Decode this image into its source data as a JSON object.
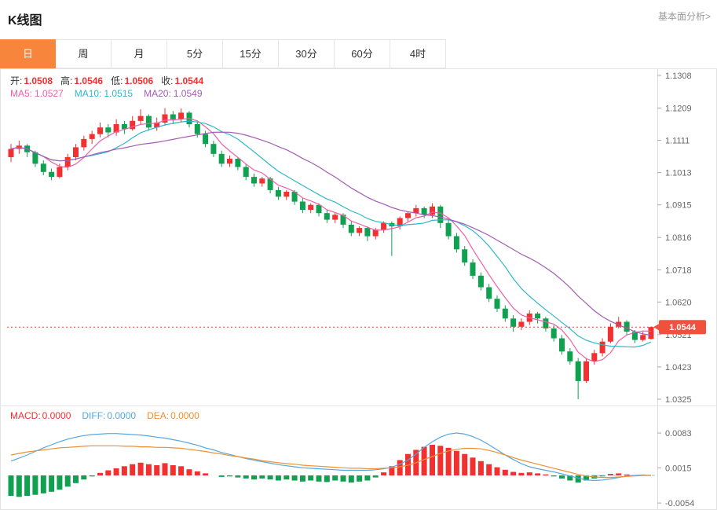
{
  "header": {
    "title": "K线图",
    "link": "基本面分析>"
  },
  "tabs": [
    {
      "id": "day",
      "label": "日",
      "active": true
    },
    {
      "id": "week",
      "label": "周",
      "active": false
    },
    {
      "id": "month",
      "label": "月",
      "active": false
    },
    {
      "id": "5min",
      "label": "5分",
      "active": false
    },
    {
      "id": "15min",
      "label": "15分",
      "active": false
    },
    {
      "id": "30min",
      "label": "30分",
      "active": false
    },
    {
      "id": "60min",
      "label": "60分",
      "active": false
    },
    {
      "id": "4hour",
      "label": "4时",
      "active": false
    }
  ],
  "ohlc": {
    "open_label": "开:",
    "open": "1.0508",
    "high_label": "高:",
    "high": "1.0546",
    "low_label": "低:",
    "low": "1.0506",
    "close_label": "收:",
    "close": "1.0544"
  },
  "ma_legend": {
    "ma5_label": "MA5:",
    "ma5": "1.0527",
    "ma10_label": "MA10:",
    "ma10": "1.0515",
    "ma20_label": "MA20:",
    "ma20": "1.0549"
  },
  "macd_legend": {
    "macd_label": "MACD:",
    "macd": "0.0000",
    "diff_label": "DIFF:",
    "diff": "0.0000",
    "dea_label": "DEA:",
    "dea": "0.0000"
  },
  "price_marker": "1.0544",
  "colors": {
    "up": "#f23030",
    "down": "#0fa050",
    "ma5": "#ef5fa7",
    "ma10": "#2fb6cc",
    "ma20": "#a55bb4",
    "diff": "#54a8e0",
    "dea": "#ee8f34",
    "tab_active": "#f7853c",
    "badge": "#f0503c",
    "dotted": "#e3402e",
    "zero_dash": "#7ad0e2"
  },
  "chart_data": {
    "type": "candlestick",
    "title": "K线图",
    "main": {
      "ylim": [
        1.0325,
        1.1308
      ],
      "y_ticks": [
        "1.1308",
        "1.1209",
        "1.1111",
        "1.1013",
        "1.0915",
        "1.0816",
        "1.0718",
        "1.0620",
        "1.0521",
        "1.0423",
        "1.0325"
      ],
      "current_price": 1.0544,
      "ma_periods": [
        5,
        10,
        20
      ],
      "ma_shown": {
        "ma5": 1.0527,
        "ma10": 1.0515,
        "ma20": 1.0549
      },
      "candles": [
        [
          1.106,
          1.11,
          1.1045,
          1.1085
        ],
        [
          1.1085,
          1.111,
          1.107,
          1.1095
        ],
        [
          1.1095,
          1.11,
          1.106,
          1.1075
        ],
        [
          1.1075,
          1.108,
          1.103,
          1.104
        ],
        [
          1.104,
          1.105,
          1.1005,
          1.1015
        ],
        [
          1.1015,
          1.1025,
          1.099,
          1.1
        ],
        [
          1.1,
          1.104,
          1.0995,
          1.103
        ],
        [
          1.103,
          1.107,
          1.102,
          1.106
        ],
        [
          1.106,
          1.11,
          1.105,
          1.109
        ],
        [
          1.109,
          1.1125,
          1.108,
          1.1115
        ],
        [
          1.1115,
          1.114,
          1.11,
          1.113
        ],
        [
          1.113,
          1.1165,
          1.112,
          1.115
        ],
        [
          1.115,
          1.116,
          1.112,
          1.1135
        ],
        [
          1.1135,
          1.1175,
          1.1125,
          1.116
        ],
        [
          1.116,
          1.117,
          1.113,
          1.1145
        ],
        [
          1.1145,
          1.1185,
          1.114,
          1.117
        ],
        [
          1.117,
          1.1205,
          1.116,
          1.1185
        ],
        [
          1.1185,
          1.119,
          1.114,
          1.115
        ],
        [
          1.115,
          1.118,
          1.114,
          1.1165
        ],
        [
          1.1165,
          1.1209,
          1.1155,
          1.119
        ],
        [
          1.119,
          1.12,
          1.116,
          1.1175
        ],
        [
          1.1175,
          1.1208,
          1.1165,
          1.1195
        ],
        [
          1.1195,
          1.12,
          1.115,
          1.116
        ],
        [
          1.116,
          1.117,
          1.112,
          1.113
        ],
        [
          1.113,
          1.114,
          1.109,
          1.11
        ],
        [
          1.11,
          1.111,
          1.106,
          1.107
        ],
        [
          1.107,
          1.108,
          1.103,
          1.104
        ],
        [
          1.104,
          1.1065,
          1.103,
          1.1055
        ],
        [
          1.1055,
          1.106,
          1.102,
          1.103
        ],
        [
          1.103,
          1.104,
          1.099,
          1.1
        ],
        [
          1.1,
          1.101,
          1.097,
          1.098
        ],
        [
          1.098,
          1.1,
          1.097,
          1.0995
        ],
        [
          1.0995,
          1.1,
          1.095,
          1.096
        ],
        [
          1.096,
          1.097,
          1.093,
          1.094
        ],
        [
          1.094,
          1.096,
          1.093,
          1.0955
        ],
        [
          1.0955,
          1.096,
          1.0915,
          1.0925
        ],
        [
          1.0925,
          1.0935,
          1.089,
          1.09
        ],
        [
          1.09,
          1.092,
          1.089,
          1.0915
        ],
        [
          1.0915,
          1.092,
          1.088,
          1.089
        ],
        [
          1.089,
          1.09,
          1.086,
          1.087
        ],
        [
          1.087,
          1.089,
          1.086,
          1.0885
        ],
        [
          1.0885,
          1.089,
          1.0845,
          1.0855
        ],
        [
          1.0855,
          1.0865,
          1.082,
          1.083
        ],
        [
          1.083,
          1.085,
          1.082,
          1.0845
        ],
        [
          1.0845,
          1.085,
          1.0805,
          1.082
        ],
        [
          1.082,
          1.0845,
          1.081,
          1.084
        ],
        [
          1.084,
          1.0865,
          1.083,
          1.086
        ],
        [
          1.086,
          1.0865,
          1.076,
          1.085
        ],
        [
          1.085,
          1.088,
          1.084,
          1.0875
        ],
        [
          1.0875,
          1.0895,
          1.0865,
          1.089
        ],
        [
          1.089,
          1.0915,
          1.088,
          1.0905
        ],
        [
          1.0905,
          1.091,
          1.0875,
          1.0885
        ],
        [
          1.0885,
          1.092,
          1.0875,
          1.091
        ],
        [
          1.091,
          1.0915,
          1.0845,
          1.086
        ],
        [
          1.086,
          1.087,
          1.081,
          1.082
        ],
        [
          1.082,
          1.083,
          1.077,
          1.078
        ],
        [
          1.078,
          1.079,
          1.073,
          1.074
        ],
        [
          1.074,
          1.075,
          1.069,
          1.07
        ],
        [
          1.07,
          1.071,
          1.0655,
          1.0665
        ],
        [
          1.0665,
          1.0675,
          1.062,
          1.063
        ],
        [
          1.063,
          1.064,
          1.059,
          1.06
        ],
        [
          1.06,
          1.061,
          1.056,
          1.057
        ],
        [
          1.057,
          1.058,
          1.053,
          1.0545
        ],
        [
          1.0545,
          1.057,
          1.0535,
          1.056
        ],
        [
          1.056,
          1.0595,
          1.055,
          1.0585
        ],
        [
          1.0585,
          1.059,
          1.0555,
          1.057
        ],
        [
          1.057,
          1.0575,
          1.053,
          1.054
        ],
        [
          1.054,
          1.055,
          1.05,
          1.051
        ],
        [
          1.051,
          1.052,
          1.046,
          1.047
        ],
        [
          1.047,
          1.048,
          1.043,
          1.044
        ],
        [
          1.044,
          1.045,
          1.0325,
          1.038
        ],
        [
          1.038,
          1.045,
          1.0375,
          1.044
        ],
        [
          1.044,
          1.0475,
          1.043,
          1.0465
        ],
        [
          1.0465,
          1.051,
          1.0455,
          1.05
        ],
        [
          1.05,
          1.0555,
          1.0495,
          1.0545
        ],
        [
          1.0545,
          1.0575,
          1.054,
          1.056
        ],
        [
          1.056,
          1.0565,
          1.052,
          1.053
        ],
        [
          1.053,
          1.0535,
          1.0495,
          1.0505
        ],
        [
          1.0505,
          1.053,
          1.05,
          1.052
        ],
        [
          1.0508,
          1.0546,
          1.0506,
          1.0544
        ]
      ]
    },
    "macd": {
      "y_ticks": [
        "0.0083",
        "0.0015",
        "-0.0054"
      ],
      "shown": {
        "macd": 0.0,
        "diff": 0.0,
        "dea": 0.0
      },
      "hist": [
        -0.004,
        -0.0042,
        -0.004,
        -0.0038,
        -0.0035,
        -0.0032,
        -0.0028,
        -0.0022,
        -0.0015,
        -0.0008,
        -0.0002,
        0.0005,
        0.001,
        0.0014,
        0.0018,
        0.0022,
        0.0025,
        0.0022,
        0.002,
        0.0024,
        0.002,
        0.0018,
        0.0012,
        0.0008,
        0.0004,
        0.0,
        -0.0003,
        -0.0002,
        -0.0004,
        -0.0006,
        -0.0008,
        -0.0006,
        -0.0008,
        -0.001,
        -0.0008,
        -0.001,
        -0.0012,
        -0.001,
        -0.0012,
        -0.0013,
        -0.001,
        -0.0012,
        -0.0014,
        -0.0012,
        -0.001,
        -0.0004,
        0.0006,
        0.0018,
        0.003,
        0.0042,
        0.005,
        0.0056,
        0.006,
        0.0058,
        0.0054,
        0.0048,
        0.0042,
        0.0035,
        0.0028,
        0.0022,
        0.0016,
        0.0011,
        0.0007,
        0.0005,
        0.0006,
        0.0004,
        0.0002,
        -0.0002,
        -0.0006,
        -0.001,
        -0.0014,
        -0.001,
        -0.0006,
        -0.0002,
        0.0003,
        0.0004,
        0.0002,
        0.0,
        0.0001,
        0.0
      ],
      "diff": [
        0.0028,
        0.0034,
        0.004,
        0.0047,
        0.0054,
        0.006,
        0.0066,
        0.0071,
        0.0075,
        0.0078,
        0.008,
        0.0081,
        0.0082,
        0.0082,
        0.0081,
        0.008,
        0.0079,
        0.0077,
        0.0075,
        0.0073,
        0.007,
        0.0067,
        0.0063,
        0.0059,
        0.0054,
        0.005,
        0.0045,
        0.0041,
        0.0037,
        0.0033,
        0.003,
        0.0027,
        0.0024,
        0.0021,
        0.0019,
        0.0017,
        0.0015,
        0.0014,
        0.0013,
        0.0012,
        0.0011,
        0.001,
        0.001,
        0.001,
        0.001,
        0.0011,
        0.0013,
        0.0016,
        0.0022,
        0.003,
        0.0042,
        0.0055,
        0.0066,
        0.0075,
        0.0081,
        0.0083,
        0.0081,
        0.0076,
        0.0069,
        0.006,
        0.005,
        0.004,
        0.0031,
        0.0023,
        0.0017,
        0.0013,
        0.001,
        0.0007,
        0.0003,
        -0.0001,
        -0.0005,
        -0.0009,
        -0.001,
        -0.0009,
        -0.0007,
        -0.0004,
        -0.0001,
        0.0,
        0.0001,
        0.0
      ],
      "dea": [
        0.004,
        0.0043,
        0.0046,
        0.0048,
        0.005,
        0.0052,
        0.0054,
        0.0055,
        0.0056,
        0.0057,
        0.0058,
        0.0058,
        0.0058,
        0.0058,
        0.0057,
        0.0057,
        0.0056,
        0.0056,
        0.0055,
        0.0055,
        0.0054,
        0.0053,
        0.0051,
        0.0049,
        0.0047,
        0.0044,
        0.0042,
        0.0039,
        0.0037,
        0.0034,
        0.0032,
        0.0029,
        0.0027,
        0.0025,
        0.0023,
        0.0022,
        0.002,
        0.0019,
        0.0018,
        0.0017,
        0.0016,
        0.0015,
        0.0014,
        0.0014,
        0.0013,
        0.0013,
        0.0014,
        0.0015,
        0.0017,
        0.002,
        0.0025,
        0.0031,
        0.0037,
        0.0043,
        0.0048,
        0.0051,
        0.0053,
        0.0053,
        0.0052,
        0.0049,
        0.0045,
        0.004,
        0.0035,
        0.003,
        0.0026,
        0.0022,
        0.0018,
        0.0014,
        0.001,
        0.0006,
        0.0002,
        -0.0001,
        -0.0003,
        -0.0004,
        -0.0004,
        -0.0003,
        -0.0002,
        -0.0001,
        0.0,
        0.0
      ]
    }
  }
}
